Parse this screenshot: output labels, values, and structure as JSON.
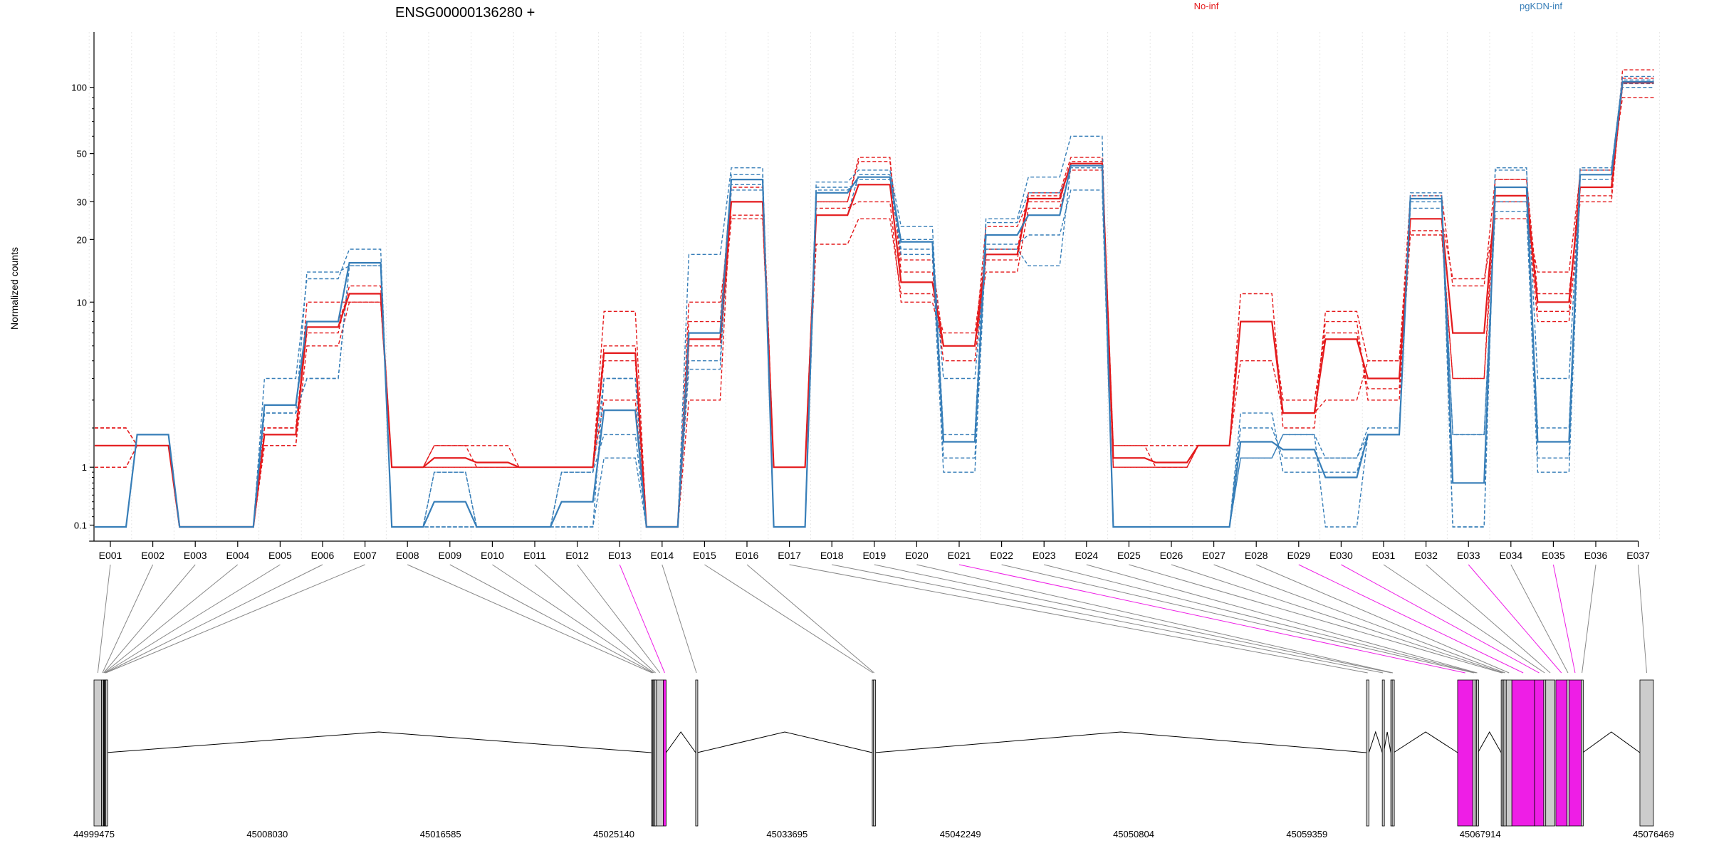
{
  "title": "ENSG00000136280 +",
  "legend": [
    {
      "name": "No-inf",
      "color": "#e41a1c"
    },
    {
      "name": "pgKDN-inf",
      "color": "#377eb8"
    }
  ],
  "ylabel": "Normalized counts",
  "highlight_color": "#ee1ee6",
  "exon_fill": "#cccccc",
  "chart_data": {
    "type": "line",
    "title": "ENSG00000136280 +",
    "ylabel": "Normalized counts",
    "yscale": "log(1+y)",
    "ylim": [
      0.08,
      150
    ],
    "y_ticks": [
      0.1,
      1,
      10,
      20,
      30,
      50,
      100
    ],
    "y_tick_labels": [
      "0.1",
      "1",
      "10",
      "20",
      "30",
      "50",
      "100"
    ],
    "categories": [
      "E001",
      "E002",
      "E003",
      "E004",
      "E005",
      "E006",
      "E007",
      "E008",
      "E009",
      "E010",
      "E011",
      "E012",
      "E013",
      "E014",
      "E015",
      "E016",
      "E017",
      "E018",
      "E019",
      "E020",
      "E021",
      "E022",
      "E023",
      "E024",
      "E025",
      "E026",
      "E027",
      "E028",
      "E029",
      "E030",
      "E031",
      "E032",
      "E033",
      "E034",
      "E035",
      "E036",
      "E037"
    ],
    "series": [
      {
        "name": "No-inf",
        "color": "#e41a1c",
        "style": "dashed",
        "values": [
          1.0,
          1.5,
          0.08,
          0.08,
          1.5,
          6,
          10,
          1,
          1,
          1,
          1,
          1,
          5,
          0.08,
          3,
          35,
          1,
          28,
          30,
          10,
          6,
          14,
          28,
          42,
          1,
          1,
          1.5,
          8,
          3,
          7,
          3.5,
          22,
          4,
          30,
          8,
          30,
          120
        ]
      },
      {
        "name": "No-inf",
        "color": "#e41a1c",
        "style": "dashed",
        "values": [
          2.0,
          1.5,
          0.08,
          0.08,
          2,
          8,
          11,
          1,
          1,
          1,
          1,
          1,
          9,
          0.08,
          6,
          25,
          1,
          30,
          48,
          14,
          5,
          16,
          33,
          48,
          1.5,
          1.5,
          1.5,
          11,
          2,
          9,
          5,
          25,
          13,
          25,
          14,
          40,
          90
        ]
      },
      {
        "name": "No-inf",
        "color": "#e41a1c",
        "style": "dashed",
        "values": [
          1.0,
          1.5,
          0.08,
          0.08,
          1.5,
          10,
          10,
          1,
          1.5,
          1.5,
          1,
          1,
          6,
          0.08,
          8,
          38,
          1,
          19,
          25,
          11,
          7,
          18,
          32,
          45,
          1.5,
          1,
          1.5,
          5,
          2.5,
          3,
          5,
          32,
          12,
          38,
          11,
          32,
          105
        ]
      },
      {
        "name": "No-inf",
        "color": "#e41a1c",
        "style": "dashed",
        "values": [
          2.0,
          1.5,
          0.08,
          0.08,
          2,
          7,
          12,
          1,
          1.5,
          1,
          1,
          1,
          3,
          0.08,
          10,
          26,
          1,
          30,
          46,
          16,
          6,
          23,
          30,
          46,
          1,
          1,
          1.5,
          8,
          2.5,
          8,
          3,
          21,
          4,
          38,
          9,
          42,
          110
        ]
      },
      {
        "name": "pgKDN-inf",
        "color": "#377eb8",
        "style": "dashed",
        "values": [
          0.08,
          1.8,
          0.08,
          0.08,
          2.5,
          14,
          15,
          0.08,
          0.9,
          0.08,
          0.08,
          0.9,
          4,
          0.08,
          7,
          36,
          0.08,
          34,
          38,
          20,
          1.2,
          24,
          33,
          43,
          0.08,
          0.08,
          0.08,
          2,
          1.2,
          1.2,
          2,
          28,
          1.8,
          30,
          2,
          38,
          100
        ]
      },
      {
        "name": "pgKDN-inf",
        "color": "#377eb8",
        "style": "dashed",
        "values": [
          0.08,
          1.8,
          0.08,
          0.08,
          4,
          13,
          18,
          0.08,
          0.08,
          0.08,
          0.08,
          0.08,
          4,
          0.08,
          17,
          43,
          0.08,
          37,
          42,
          23,
          1.8,
          25,
          39,
          60,
          0.08,
          0.08,
          0.08,
          1.2,
          1.8,
          0.08,
          1.8,
          33,
          0.08,
          43,
          1.2,
          43,
          108
        ]
      },
      {
        "name": "pgKDN-inf",
        "color": "#377eb8",
        "style": "dashed",
        "values": [
          0.08,
          1.8,
          0.08,
          0.08,
          2.5,
          4,
          15,
          0.08,
          0.9,
          0.08,
          0.08,
          0.9,
          1.8,
          0.08,
          5,
          34,
          0.08,
          26,
          40,
          17,
          0.9,
          19,
          21,
          34,
          0.08,
          0.08,
          0.08,
          2.5,
          0.9,
          0.9,
          1.8,
          30,
          1.8,
          27,
          0.9,
          35,
          104
        ]
      },
      {
        "name": "pgKDN-inf",
        "color": "#377eb8",
        "style": "dashed",
        "values": [
          0.08,
          1.8,
          0.08,
          0.08,
          2.5,
          4,
          15,
          0.08,
          0.08,
          0.08,
          0.08,
          0.08,
          1.2,
          0.08,
          4.5,
          40,
          0.08,
          35,
          36,
          18,
          4,
          18,
          15,
          44,
          0.08,
          0.08,
          0.08,
          1.2,
          1.8,
          1.2,
          1.8,
          32,
          0.08,
          42,
          4,
          42,
          112
        ]
      }
    ],
    "mean_series": [
      {
        "name": "No-inf",
        "color": "#e41a1c",
        "values": [
          1.5,
          1.5,
          0.08,
          0.08,
          1.8,
          7.5,
          11,
          1,
          1.2,
          1.1,
          1,
          1,
          5.5,
          0.08,
          6.5,
          30,
          1,
          26,
          36,
          12.5,
          6,
          17,
          31,
          45,
          1.2,
          1.1,
          1.5,
          8,
          2.5,
          6.5,
          4,
          25,
          7,
          32,
          10,
          35,
          105
        ]
      },
      {
        "name": "pgKDN-inf",
        "color": "#377eb8",
        "values": [
          0.08,
          1.8,
          0.08,
          0.08,
          2.8,
          8,
          15.5,
          0.08,
          0.4,
          0.08,
          0.08,
          0.4,
          2.6,
          0.08,
          7,
          38,
          0.08,
          33,
          39,
          19.5,
          1.6,
          21,
          26,
          44,
          0.08,
          0.08,
          0.08,
          1.6,
          1.4,
          0.8,
          1.8,
          31,
          0.7,
          35,
          1.6,
          40,
          106
        ]
      }
    ],
    "gene_model": {
      "genome_start": 44999475,
      "genome_end": 45076469,
      "axis_tick_labels": [
        "44999475",
        "45008030",
        "45016585",
        "45025140",
        "45033695",
        "45042249",
        "45050804",
        "45059359",
        "45067914",
        "45076469"
      ],
      "exons": [
        {
          "id": "E001",
          "start": 44999475,
          "end": 44999850,
          "highlight": false
        },
        {
          "id": "E002",
          "start": 44999850,
          "end": 44999935,
          "highlight": false
        },
        {
          "id": "E003",
          "start": 44999935,
          "end": 44999965,
          "highlight": false
        },
        {
          "id": "E004",
          "start": 44999965,
          "end": 44999995,
          "highlight": false
        },
        {
          "id": "E005",
          "start": 44999995,
          "end": 45000020,
          "highlight": false
        },
        {
          "id": "E006",
          "start": 45000020,
          "end": 45000045,
          "highlight": false
        },
        {
          "id": "E007",
          "start": 45000045,
          "end": 45000070,
          "highlight": false
        },
        {
          "id": "E008",
          "start": 45027000,
          "end": 45027060,
          "highlight": false
        },
        {
          "id": "E009",
          "start": 45027060,
          "end": 45027100,
          "highlight": false
        },
        {
          "id": "E010",
          "start": 45027100,
          "end": 45027150,
          "highlight": false
        },
        {
          "id": "E011",
          "start": 45027150,
          "end": 45027250,
          "highlight": false
        },
        {
          "id": "E012",
          "start": 45027250,
          "end": 45027580,
          "highlight": false
        },
        {
          "id": "E013",
          "start": 45027580,
          "end": 45027720,
          "highlight": true
        },
        {
          "id": "E014",
          "start": 45029180,
          "end": 45029260,
          "highlight": false
        },
        {
          "id": "E015",
          "start": 45037900,
          "end": 45037960,
          "highlight": false
        },
        {
          "id": "E016",
          "start": 45037960,
          "end": 45038030,
          "highlight": false
        },
        {
          "id": "E017",
          "start": 45062300,
          "end": 45062420,
          "highlight": false
        },
        {
          "id": "E018",
          "start": 45063080,
          "end": 45063150,
          "highlight": false
        },
        {
          "id": "E019",
          "start": 45063500,
          "end": 45063570,
          "highlight": false
        },
        {
          "id": "E020",
          "start": 45063570,
          "end": 45063640,
          "highlight": false
        },
        {
          "id": "E021",
          "start": 45066800,
          "end": 45067550,
          "highlight": true
        },
        {
          "id": "E022",
          "start": 45067550,
          "end": 45067660,
          "highlight": false
        },
        {
          "id": "E023",
          "start": 45067660,
          "end": 45067730,
          "highlight": false
        },
        {
          "id": "E024",
          "start": 45067730,
          "end": 45067800,
          "highlight": false
        },
        {
          "id": "E025",
          "start": 45068950,
          "end": 45069010,
          "highlight": false
        },
        {
          "id": "E026",
          "start": 45069010,
          "end": 45069080,
          "highlight": false
        },
        {
          "id": "E027",
          "start": 45069080,
          "end": 45069200,
          "highlight": false
        },
        {
          "id": "E028",
          "start": 45069200,
          "end": 45069480,
          "highlight": false
        },
        {
          "id": "E029",
          "start": 45069480,
          "end": 45070600,
          "highlight": true
        },
        {
          "id": "E030",
          "start": 45070600,
          "end": 45071050,
          "highlight": true
        },
        {
          "id": "E031",
          "start": 45071050,
          "end": 45071150,
          "highlight": false
        },
        {
          "id": "E032",
          "start": 45071150,
          "end": 45071600,
          "highlight": false
        },
        {
          "id": "E033",
          "start": 45071650,
          "end": 45072200,
          "highlight": true
        },
        {
          "id": "E034",
          "start": 45072200,
          "end": 45072300,
          "highlight": false
        },
        {
          "id": "E035",
          "start": 45072300,
          "end": 45072900,
          "highlight": true
        },
        {
          "id": "E036",
          "start": 45072900,
          "end": 45072980,
          "highlight": false
        },
        {
          "id": "E037",
          "start": 45075800,
          "end": 45076469,
          "highlight": false
        }
      ]
    }
  }
}
